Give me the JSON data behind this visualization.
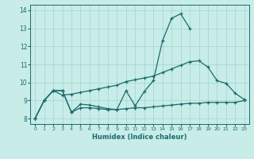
{
  "xlabel": "Humidex (Indice chaleur)",
  "background_color": "#c8ece8",
  "grid_color": "#a8d8d4",
  "line_color": "#1a6b6b",
  "x": [
    0,
    1,
    2,
    3,
    4,
    5,
    6,
    7,
    8,
    9,
    10,
    11,
    12,
    13,
    14,
    15,
    16,
    17,
    18,
    19,
    20,
    21,
    22,
    23
  ],
  "line1": [
    8.0,
    9.0,
    9.55,
    9.55,
    8.35,
    8.8,
    8.75,
    8.65,
    8.55,
    8.5,
    9.55,
    8.7,
    9.5,
    10.1,
    12.3,
    13.55,
    13.8,
    13.0,
    null,
    null,
    null,
    null,
    null,
    null
  ],
  "line2": [
    8.0,
    9.0,
    9.55,
    9.55,
    8.35,
    8.6,
    8.6,
    8.55,
    8.5,
    8.5,
    8.55,
    8.6,
    8.6,
    8.65,
    8.7,
    8.75,
    8.8,
    8.85,
    8.85,
    8.9,
    8.9,
    8.9,
    8.9,
    9.0
  ],
  "line3": [
    8.0,
    9.0,
    9.55,
    9.3,
    9.35,
    9.45,
    9.55,
    9.65,
    9.75,
    9.85,
    10.05,
    10.15,
    10.25,
    10.35,
    10.55,
    10.75,
    10.95,
    11.15,
    11.2,
    10.85,
    10.1,
    9.95,
    9.4,
    9.05
  ],
  "ylim": [
    7.7,
    14.3
  ],
  "yticks": [
    8,
    9,
    10,
    11,
    12,
    13,
    14
  ],
  "xlim": [
    -0.5,
    23.5
  ]
}
